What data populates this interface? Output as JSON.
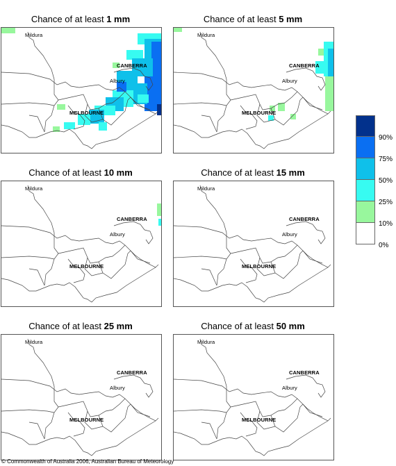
{
  "panels": [
    {
      "title_prefix": "Chance of at least ",
      "threshold": "1 mm"
    },
    {
      "title_prefix": "Chance of at least ",
      "threshold": "5 mm"
    },
    {
      "title_prefix": "Chance of at least ",
      "threshold": "10 mm"
    },
    {
      "title_prefix": "Chance of at least ",
      "threshold": "15 mm"
    },
    {
      "title_prefix": "Chance of at least ",
      "threshold": "25 mm"
    },
    {
      "title_prefix": "Chance of at least ",
      "threshold": "50 mm"
    }
  ],
  "places": {
    "mildura": "Mildura",
    "canberra": "CANBERRA",
    "albury": "Albury",
    "melbourne": "MELBOURNE"
  },
  "legend": {
    "labels": [
      "90%",
      "75%",
      "50%",
      "25%",
      "10%",
      "0%"
    ],
    "colors": [
      "#02318c",
      "#0a6ff2",
      "#0fc0ea",
      "#37fbf1",
      "#98f79d",
      "#ffffff"
    ]
  },
  "copyright": "© Commonwealth of Australia 2006, Australian Bureau of Meteorology"
}
